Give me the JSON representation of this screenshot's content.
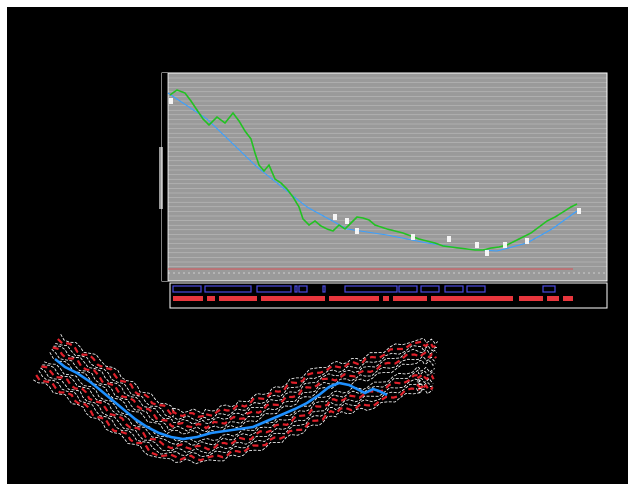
{
  "colors": {
    "background": "#000000",
    "frame": "#ffffff",
    "grid": "#8a8a8a",
    "ground_line": "#22c222",
    "design_line": "#3aa0ff",
    "highlight": "#1e90ff",
    "contour_white": "#ffffff",
    "contour_red": "#e0202a",
    "band_red": "#e8363d",
    "band_blue": "#4a4adf"
  },
  "profile": {
    "icons": [
      "profile-grid-icon",
      "ground-profile-icon",
      "design-grade-icon"
    ]
  },
  "plan": {
    "icons": [
      "plan-contour-icon",
      "alignment-icon"
    ]
  }
}
